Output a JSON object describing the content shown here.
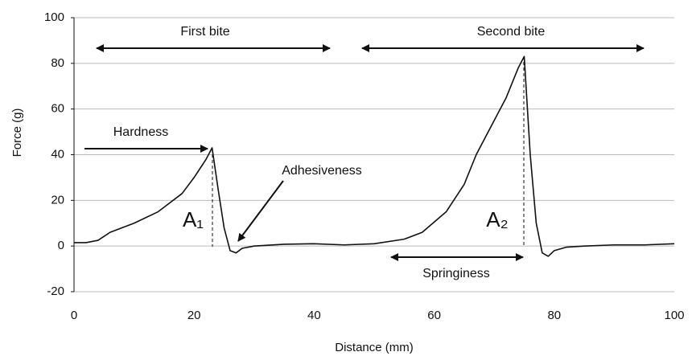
{
  "chart_data": {
    "type": "line",
    "x_label": "Distance (mm)",
    "y_label": "Force (g)",
    "x": [
      0,
      2,
      4,
      6,
      10,
      14,
      18,
      20,
      22,
      23,
      24,
      25,
      26,
      27,
      28,
      30,
      35,
      40,
      45,
      50,
      55,
      58,
      62,
      65,
      67,
      70,
      72,
      74,
      75,
      76,
      77,
      78,
      79,
      80,
      82,
      85,
      90,
      95,
      100
    ],
    "series": [
      {
        "color": "#111111",
        "values": [
          1.5,
          1.5,
          2.5,
          6,
          10,
          15,
          23,
          30,
          38,
          43,
          25,
          8,
          -2,
          -3,
          -1,
          0,
          0.8,
          1,
          0.5,
          1,
          3,
          6,
          15,
          27,
          40,
          55,
          65,
          78,
          83,
          40,
          10,
          -3,
          -4.5,
          -2,
          -0.5,
          0,
          0.5,
          0.5,
          1
        ]
      }
    ],
    "xlim": [
      0,
      100
    ],
    "xticks": [
      0,
      20,
      40,
      60,
      80,
      100
    ],
    "ylim": [
      -20,
      100
    ],
    "yticks": [
      -20,
      0,
      20,
      40,
      60,
      80,
      100
    ],
    "grid": true,
    "annotations": [
      "First bite",
      "Second bite",
      "Hardness",
      "Adhesiveness",
      "A₁",
      "A₂",
      "Springiness"
    ]
  }
}
